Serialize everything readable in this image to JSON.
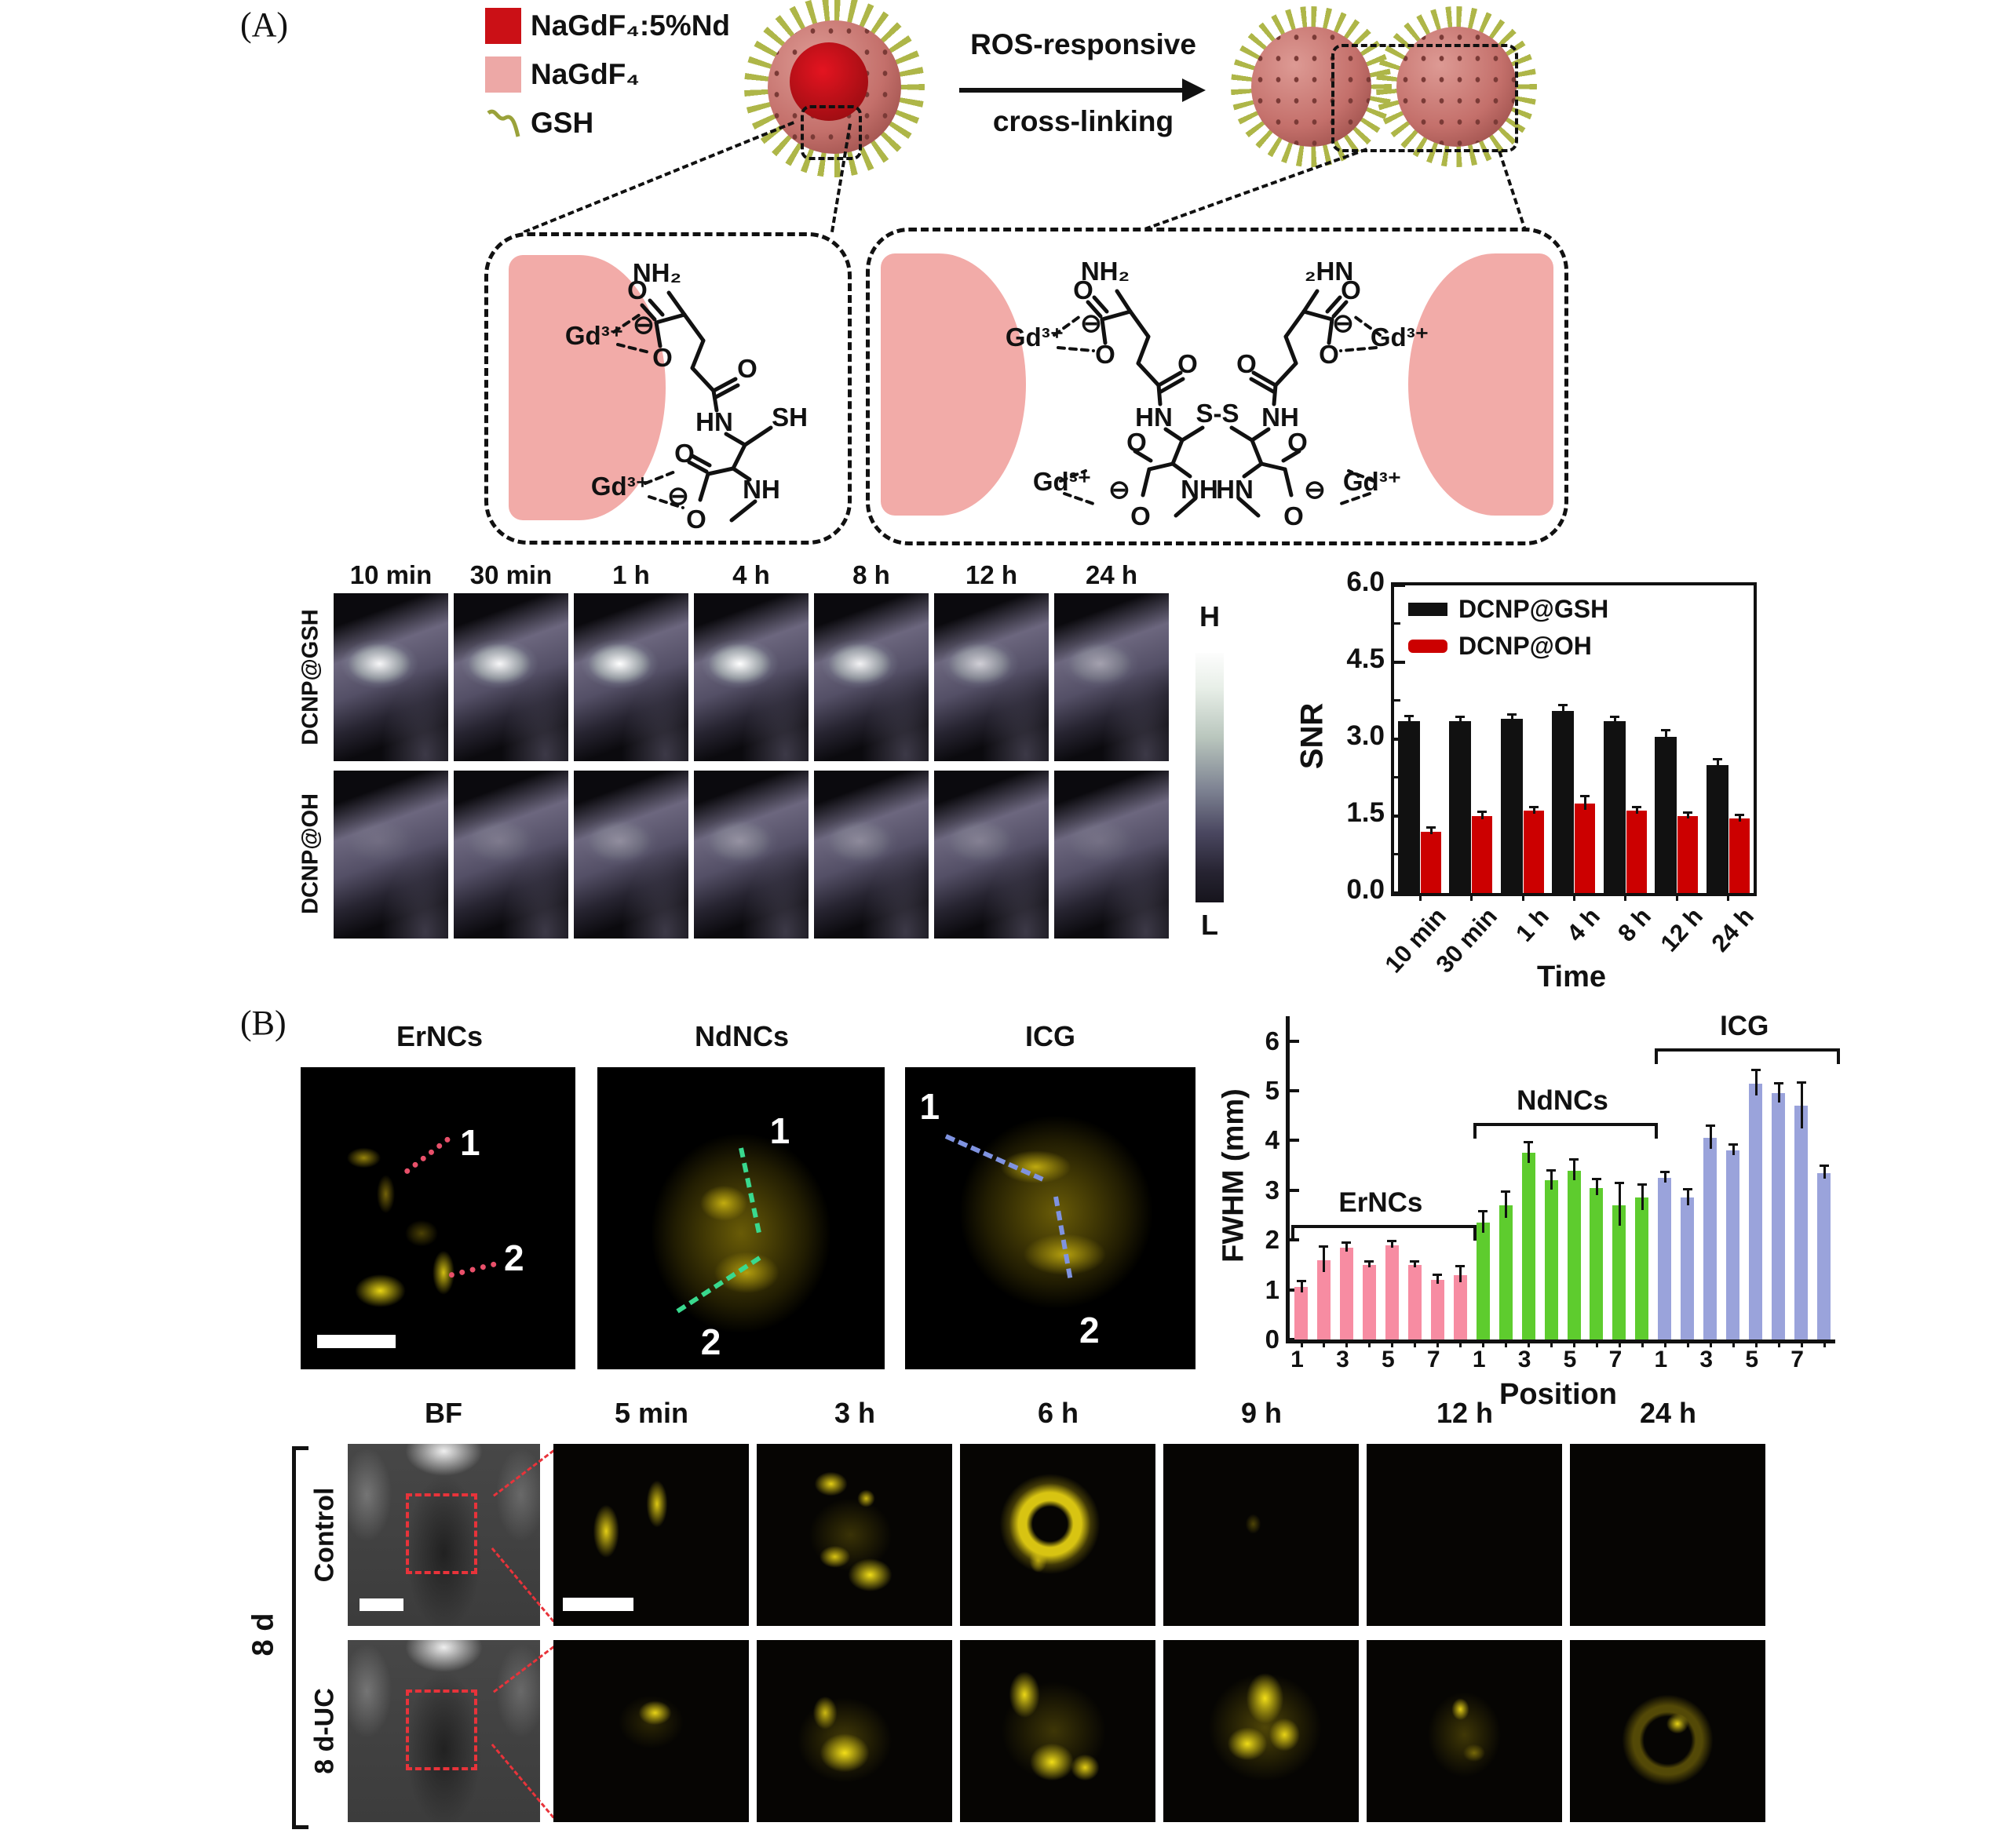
{
  "panelA": {
    "label": "(A)",
    "legend": {
      "items": [
        {
          "label": "NaGdF₄:5%Nd",
          "swatch": "#cb1016"
        },
        {
          "label": "NaGdF₄",
          "swatch": "#eda8a6"
        },
        {
          "label": "GSH",
          "swatch": "#9aa23a"
        }
      ]
    },
    "arrow_top": "ROS-responsive",
    "arrow_bottom": "cross-linking",
    "chem": {
      "nh2": "NH₂",
      "hn2": "₂HN",
      "gd": "Gd³⁺",
      "hn": "HN",
      "nh": "NH",
      "sh": "SH",
      "ss": "S-S",
      "o": "O",
      "minus": "⊖"
    },
    "row_labels": [
      "DCNP@GSH",
      "DCNP@OH"
    ],
    "time_labels": [
      "10 min",
      "30 min",
      "1 h",
      "4 h",
      "8 h",
      "12 h",
      "24 h"
    ],
    "colorbar": {
      "high": "H",
      "low": "L"
    }
  },
  "chart_data": [
    {
      "type": "bar",
      "title": "",
      "ylabel": "SNR",
      "xlabel": "Time",
      "ylim": [
        0,
        6
      ],
      "yticks": [
        "0.0",
        "1.5",
        "3.0",
        "4.5",
        "6.0"
      ],
      "grid": false,
      "legend_position": "top-left",
      "categories": [
        "10 min",
        "30 min",
        "1 h",
        "4 h",
        "8 h",
        "12 h",
        "24 h"
      ],
      "series": [
        {
          "name": "DCNP@GSH",
          "color": "#111111",
          "values": [
            3.35,
            3.35,
            3.4,
            3.55,
            3.35,
            3.05,
            2.5
          ],
          "errors": [
            0.08,
            0.06,
            0.06,
            0.1,
            0.06,
            0.1,
            0.08
          ]
        },
        {
          "name": "DCNP@OH",
          "color": "#cc0000",
          "values": [
            1.2,
            1.5,
            1.6,
            1.75,
            1.6,
            1.5,
            1.45
          ],
          "errors": [
            0.05,
            0.06,
            0.06,
            0.12,
            0.05,
            0.05,
            0.05
          ]
        }
      ]
    },
    {
      "type": "bar",
      "title": "",
      "ylabel": "FWHM (mm)",
      "xlabel": "Position",
      "ylim": [
        0,
        6
      ],
      "yticks": [
        "0",
        "1",
        "2",
        "3",
        "4",
        "5",
        "6"
      ],
      "grid": false,
      "group_xticks": [
        "1",
        "3",
        "5",
        "7"
      ],
      "groups": [
        {
          "name": "ErNCs",
          "color": "#f78ca2",
          "bracket_level": 2.3,
          "values": [
            1.05,
            1.6,
            1.85,
            1.5,
            1.9,
            1.5,
            1.2,
            1.3
          ],
          "errors": [
            0.1,
            0.25,
            0.08,
            0.05,
            0.05,
            0.05,
            0.08,
            0.15
          ]
        },
        {
          "name": "NdNCs",
          "color": "#5ecc2e",
          "bracket_level": 4.35,
          "values": [
            2.35,
            2.7,
            3.75,
            3.2,
            3.4,
            3.05,
            2.7,
            2.85
          ],
          "errors": [
            0.2,
            0.25,
            0.2,
            0.18,
            0.2,
            0.15,
            0.42,
            0.25
          ]
        },
        {
          "name": "ICG",
          "color": "#9aa3db",
          "bracket_level": 5.85,
          "values": [
            3.25,
            2.85,
            4.05,
            3.8,
            5.15,
            4.95,
            4.7,
            3.35
          ],
          "errors": [
            0.1,
            0.15,
            0.22,
            0.1,
            0.25,
            0.18,
            0.45,
            0.12
          ]
        }
      ]
    }
  ],
  "panelB": {
    "label": "(B)",
    "images": [
      {
        "title": "ErNCs",
        "marker1": "1",
        "marker2": "2"
      },
      {
        "title": "NdNCs",
        "marker1": "1",
        "marker2": "2"
      },
      {
        "title": "ICG",
        "marker1": "1",
        "marker2": "2"
      }
    ]
  },
  "bottom": {
    "bracket_label": "8 d",
    "row_labels": [
      "Control",
      "8 d-UC"
    ],
    "col_labels": [
      "BF",
      "5 min",
      "3 h",
      "6 h",
      "9 h",
      "12 h",
      "24 h"
    ]
  }
}
